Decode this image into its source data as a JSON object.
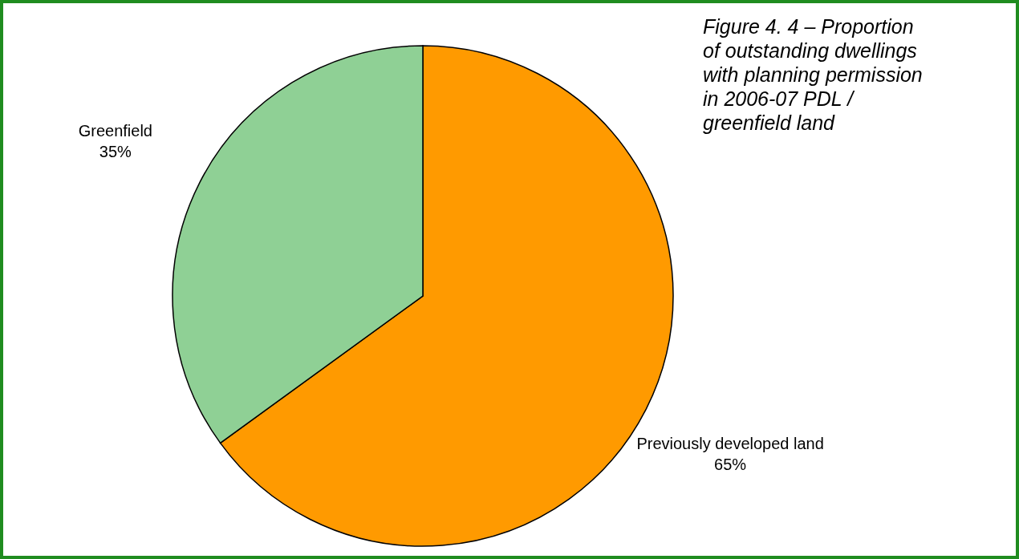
{
  "chart_data": {
    "type": "pie",
    "title": "Figure 4. 4 – Proportion\nof outstanding dwellings\nwith planning permission\nin 2006-07 PDL /\ngreenfield land",
    "categories": [
      "Previously developed land",
      "Greenfield"
    ],
    "values": [
      65,
      35
    ],
    "value_labels": [
      "65%",
      "35%"
    ],
    "colors": [
      "#ff9a00",
      "#8fd095"
    ]
  }
}
